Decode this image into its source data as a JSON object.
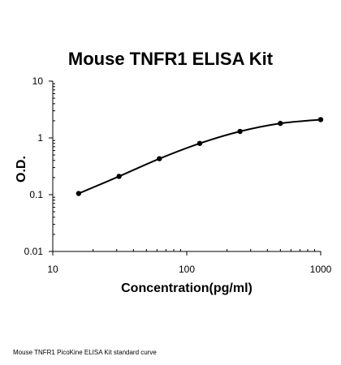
{
  "chart_data": {
    "type": "scatter",
    "title": "Mouse TNFR1 ELISA Kit",
    "xlabel": "Concentration(pg/ml)",
    "ylabel": "O.D.",
    "xscale": "log",
    "yscale": "log",
    "xlim": [
      10,
      1000
    ],
    "ylim": [
      0.01,
      10
    ],
    "xticks": [
      "10",
      "100",
      "1000"
    ],
    "yticks": [
      "0.01",
      "0.1",
      "1",
      "10"
    ],
    "grid": false,
    "legend": "none",
    "fit_line": "smooth",
    "series": [
      {
        "x": [
          15.6,
          31.25,
          62.5,
          125,
          250,
          500,
          1000
        ],
        "y": [
          0.105,
          0.21,
          0.43,
          0.8,
          1.3,
          1.8,
          2.1
        ]
      }
    ]
  },
  "caption": "Mouse TNFR1 PicoKine ELISA Kit standard curve"
}
